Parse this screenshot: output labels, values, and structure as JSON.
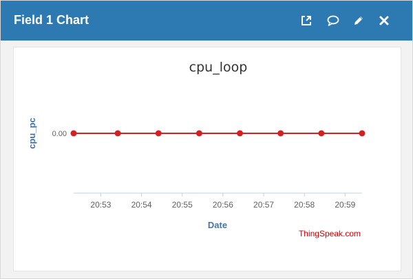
{
  "widget": {
    "title": "Field 1 Chart",
    "icons": [
      "external-link-icon",
      "comment-icon",
      "pencil-icon",
      "close-icon"
    ]
  },
  "colors": {
    "header": "#2d7ab2",
    "series": "#d62020",
    "axis_label": "#4572a7",
    "credit": "#cc0000"
  },
  "credit": "ThingSpeak.com",
  "chart_data": {
    "type": "line",
    "title": "cpu_loop",
    "xlabel": "Date",
    "ylabel": "cpu_pc",
    "x_ticks": [
      "20:53",
      "20:54",
      "20:55",
      "20:56",
      "20:57",
      "20:58",
      "20:59"
    ],
    "y_ticks": [
      "0.00"
    ],
    "series": [
      {
        "x": [
          "20:52:20",
          "20:53:25",
          "20:54:25",
          "20:55:25",
          "20:56:25",
          "20:57:25",
          "20:58:25",
          "20:59:25"
        ],
        "y": [
          0,
          0,
          0,
          0,
          0,
          0,
          0,
          0
        ]
      }
    ],
    "xlim": [
      "20:52:20",
      "20:59:25"
    ],
    "grid": false,
    "legend": "none"
  }
}
